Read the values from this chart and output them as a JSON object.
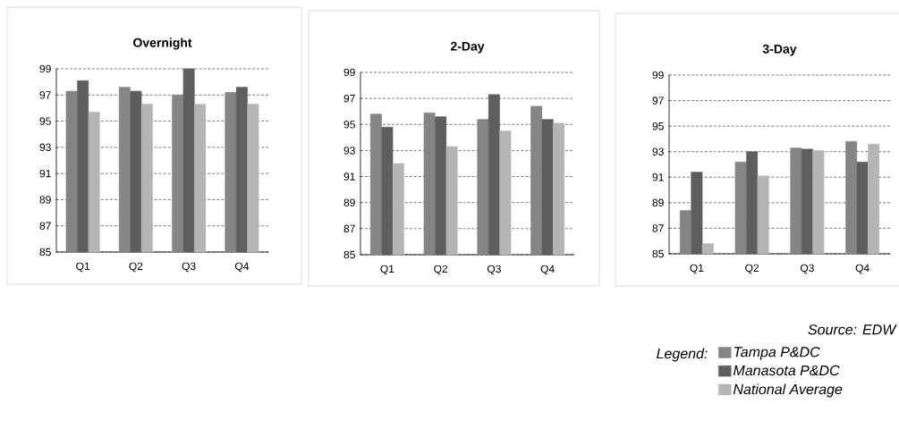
{
  "chart_data": [
    {
      "type": "bar",
      "title": "Overnight",
      "categories": [
        "Q1",
        "Q2",
        "Q3",
        "Q4"
      ],
      "ylim": [
        85,
        99
      ],
      "yticks": [
        85,
        87,
        89,
        91,
        93,
        95,
        97,
        99
      ],
      "grid": "y",
      "series": [
        {
          "color": "#858585",
          "values": [
            97.3,
            97.6,
            97.0,
            97.2
          ]
        },
        {
          "color": "#5e5e5e",
          "values": [
            98.1,
            97.3,
            99.0,
            97.6
          ]
        },
        {
          "color": "#b5b5b5",
          "values": [
            95.7,
            96.3,
            96.3,
            96.3
          ]
        }
      ]
    },
    {
      "type": "bar",
      "title": "2-Day",
      "categories": [
        "Q1",
        "Q2",
        "Q3",
        "Q4"
      ],
      "ylim": [
        85,
        99
      ],
      "yticks": [
        85,
        87,
        89,
        91,
        93,
        95,
        97,
        99
      ],
      "grid": "y",
      "series": [
        {
          "color": "#858585",
          "values": [
            95.8,
            95.9,
            95.4,
            96.4
          ]
        },
        {
          "color": "#5e5e5e",
          "values": [
            94.8,
            95.6,
            97.3,
            95.4
          ]
        },
        {
          "color": "#b5b5b5",
          "values": [
            92.0,
            93.3,
            94.5,
            95.1
          ]
        }
      ]
    },
    {
      "type": "bar",
      "title": "3-Day",
      "categories": [
        "Q1",
        "Q2",
        "Q3",
        "Q4"
      ],
      "ylim": [
        85,
        99
      ],
      "yticks": [
        85,
        87,
        89,
        91,
        93,
        95,
        97,
        99
      ],
      "grid": "y",
      "legend": "bottom",
      "legend_title": "Legend:",
      "annotations": [
        "Source: EDW"
      ],
      "series": [
        {
          "name": "Tampa P&DC",
          "color": "#858585",
          "values": [
            88.4,
            92.2,
            93.3,
            93.8
          ]
        },
        {
          "name": "Manasota P&DC",
          "color": "#5e5e5e",
          "values": [
            91.4,
            93.0,
            93.2,
            92.2
          ]
        },
        {
          "name": "National Average",
          "color": "#b5b5b5",
          "values": [
            85.8,
            91.1,
            93.1,
            93.6
          ]
        }
      ]
    }
  ]
}
